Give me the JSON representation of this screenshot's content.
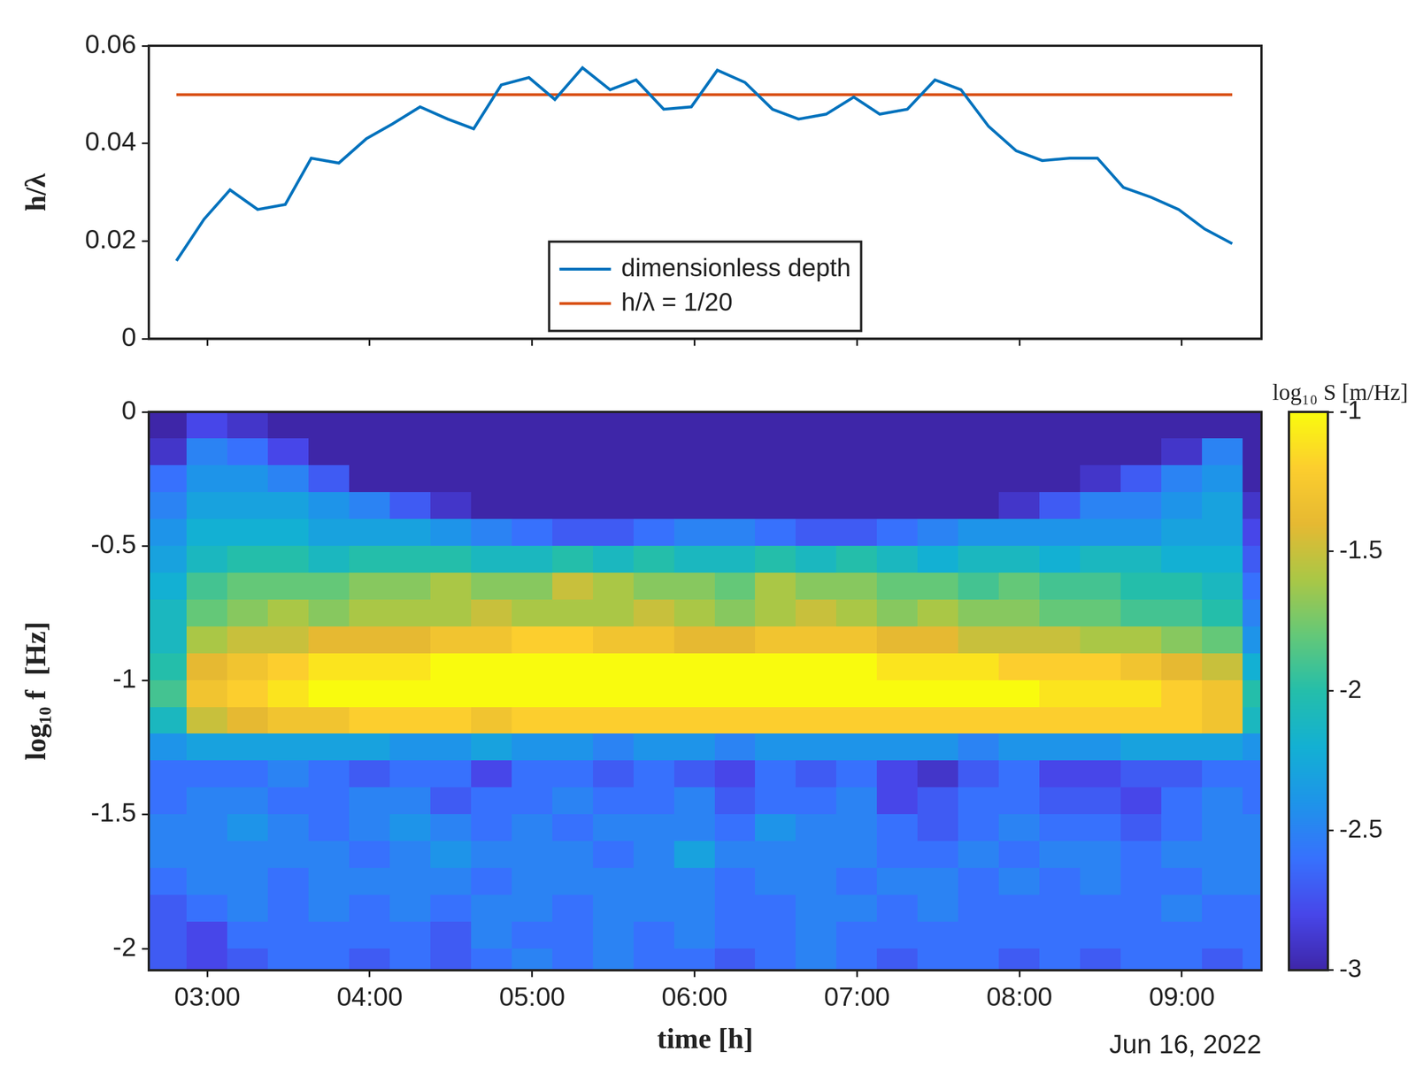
{
  "chart_data": [
    {
      "type": "line",
      "ylabel": "h/λ",
      "xlim": [
        2.64,
        9.49
      ],
      "xticks": [
        {
          "value": 3,
          "label": "03:00"
        },
        {
          "value": 4,
          "label": "04:00"
        },
        {
          "value": 5,
          "label": "05:00"
        },
        {
          "value": 6,
          "label": "06:00"
        },
        {
          "value": 7,
          "label": "07:00"
        },
        {
          "value": 8,
          "label": "08:00"
        },
        {
          "value": 9,
          "label": "09:00"
        }
      ],
      "ylim": [
        0,
        0.06
      ],
      "yticks": [
        0,
        0.02,
        0.04,
        0.06
      ],
      "legend": "bottom",
      "tick_labels": "y",
      "grid": false,
      "series": [
        {
          "name": "dimensionless depth",
          "color": "#0072bd",
          "x": [
            2.81,
            2.98,
            3.14,
            3.31,
            3.48,
            3.64,
            3.81,
            3.98,
            4.14,
            4.31,
            4.48,
            4.64,
            4.81,
            4.98,
            5.14,
            5.31,
            5.48,
            5.64,
            5.81,
            5.98,
            6.14,
            6.31,
            6.48,
            6.64,
            6.81,
            6.98,
            7.14,
            7.31,
            7.48,
            7.64,
            7.81,
            7.98,
            8.14,
            8.31,
            8.48,
            8.64,
            8.81,
            8.98,
            9.14,
            9.31
          ],
          "values": [
            0.016,
            0.0245,
            0.0305,
            0.0265,
            0.0275,
            0.037,
            0.036,
            0.041,
            0.044,
            0.0475,
            0.045,
            0.043,
            0.052,
            0.0535,
            0.049,
            0.0555,
            0.051,
            0.053,
            0.047,
            0.0475,
            0.055,
            0.0525,
            0.047,
            0.045,
            0.046,
            0.0495,
            0.046,
            0.047,
            0.053,
            0.051,
            0.0435,
            0.0385,
            0.0365,
            0.037,
            0.037,
            0.031,
            0.029,
            0.0265,
            0.0225,
            0.0195
          ]
        },
        {
          "name": "h/λ = 1/20",
          "color": "#d95319",
          "x": [
            2.81,
            9.31
          ],
          "values": [
            0.05,
            0.05
          ]
        }
      ]
    },
    {
      "type": "heatmap",
      "xlabel": "time [h]",
      "ylabel": "log₁₀ f  [Hz]",
      "annotation": "Jun 16, 2022",
      "xlim": [
        2.64,
        9.49
      ],
      "xticks": [
        {
          "value": 3,
          "label": "03:00"
        },
        {
          "value": 4,
          "label": "04:00"
        },
        {
          "value": 5,
          "label": "05:00"
        },
        {
          "value": 6,
          "label": "06:00"
        },
        {
          "value": 7,
          "label": "07:00"
        },
        {
          "value": 8,
          "label": "08:00"
        },
        {
          "value": 9,
          "label": "09:00"
        }
      ],
      "ylim": [
        -2.08,
        0
      ],
      "yticks": [
        0,
        -0.5,
        -1,
        -1.5,
        -2
      ],
      "grid": false,
      "colorbar": {
        "title": "log₁₀ S [m/Hz]",
        "lim": [
          -3,
          -1
        ],
        "ticks": [
          -3,
          -2.5,
          -2,
          -1.5,
          -1
        ]
      },
      "x": [
        2.75,
        3,
        3.25,
        3.5,
        3.75,
        4,
        4.25,
        4.5,
        4.75,
        5,
        5.25,
        5.5,
        5.75,
        6,
        6.25,
        6.5,
        6.75,
        7,
        7.25,
        7.5,
        7.75,
        8,
        8.25,
        8.5,
        8.75,
        9,
        9.25,
        9.5
      ],
      "y": [
        -0.05,
        -0.15,
        -0.25,
        -0.35,
        -0.45,
        -0.55,
        -0.65,
        -0.75,
        -0.85,
        -0.95,
        -1.05,
        -1.15,
        -1.25,
        -1.35,
        -1.45,
        -1.55,
        -1.65,
        -1.75,
        -1.85,
        -1.95,
        -2.05
      ],
      "values": [
        [
          -3,
          -2.8,
          -2.9,
          -3,
          -3,
          -3,
          -3,
          -3,
          -3,
          -3,
          -3,
          -3,
          -3,
          -3,
          -3,
          -3,
          -3,
          -3,
          -3,
          -3,
          -3,
          -3,
          -3,
          -3,
          -3,
          -3,
          -3,
          -3
        ],
        [
          -2.9,
          -2.5,
          -2.6,
          -2.8,
          -3,
          -3,
          -3,
          -3,
          -3,
          -3,
          -3,
          -3,
          -3,
          -3,
          -3,
          -3,
          -3,
          -3,
          -3,
          -3,
          -3,
          -3,
          -3,
          -3,
          -3,
          -2.9,
          -2.5,
          -3
        ],
        [
          -2.6,
          -2.4,
          -2.4,
          -2.5,
          -2.7,
          -3,
          -3,
          -3,
          -3,
          -3,
          -3,
          -3,
          -3,
          -3,
          -3,
          -3,
          -3,
          -3,
          -3,
          -3,
          -3,
          -3,
          -3,
          -2.9,
          -2.7,
          -2.5,
          -2.4,
          -3
        ],
        [
          -2.5,
          -2.3,
          -2.3,
          -2.3,
          -2.4,
          -2.5,
          -2.7,
          -2.9,
          -3,
          -3,
          -3,
          -3,
          -3,
          -3,
          -3,
          -3,
          -3,
          -3,
          -3,
          -3,
          -3,
          -2.9,
          -2.7,
          -2.5,
          -2.5,
          -2.4,
          -2.3,
          -2.9
        ],
        [
          -2.4,
          -2.2,
          -2.2,
          -2.2,
          -2.3,
          -2.3,
          -2.3,
          -2.4,
          -2.5,
          -2.6,
          -2.7,
          -2.7,
          -2.6,
          -2.5,
          -2.5,
          -2.6,
          -2.7,
          -2.7,
          -2.6,
          -2.5,
          -2.4,
          -2.4,
          -2.4,
          -2.4,
          -2.4,
          -2.3,
          -2.3,
          -2.8
        ],
        [
          -2.3,
          -2.1,
          -2,
          -2,
          -2.1,
          -2,
          -2,
          -2,
          -2.1,
          -2.1,
          -2,
          -2.1,
          -2,
          -2.1,
          -2.1,
          -2,
          -2.1,
          -2,
          -2.1,
          -2.2,
          -2.1,
          -2.1,
          -2.2,
          -2.1,
          -2.1,
          -2.2,
          -2.2,
          -2.7
        ],
        [
          -2.2,
          -1.9,
          -1.8,
          -1.8,
          -1.8,
          -1.7,
          -1.7,
          -1.6,
          -1.7,
          -1.7,
          -1.5,
          -1.6,
          -1.7,
          -1.7,
          -1.8,
          -1.6,
          -1.7,
          -1.7,
          -1.8,
          -1.8,
          -1.9,
          -1.8,
          -1.9,
          -1.9,
          -2,
          -2,
          -2.1,
          -2.6
        ],
        [
          -2.1,
          -1.8,
          -1.7,
          -1.6,
          -1.7,
          -1.6,
          -1.6,
          -1.6,
          -1.5,
          -1.6,
          -1.6,
          -1.6,
          -1.5,
          -1.6,
          -1.7,
          -1.6,
          -1.5,
          -1.6,
          -1.7,
          -1.6,
          -1.7,
          -1.7,
          -1.8,
          -1.8,
          -1.9,
          -1.9,
          -2,
          -2.5
        ],
        [
          -2.1,
          -1.6,
          -1.5,
          -1.5,
          -1.4,
          -1.4,
          -1.4,
          -1.3,
          -1.3,
          -1.2,
          -1.2,
          -1.3,
          -1.3,
          -1.4,
          -1.4,
          -1.3,
          -1.3,
          -1.3,
          -1.4,
          -1.4,
          -1.5,
          -1.5,
          -1.5,
          -1.6,
          -1.6,
          -1.7,
          -1.8,
          -2.4
        ],
        [
          -2,
          -1.4,
          -1.3,
          -1.2,
          -1.1,
          -1.1,
          -1.1,
          -1,
          -1,
          -1,
          -1,
          -1,
          -1,
          -1,
          -1,
          -1,
          -1,
          -1,
          -1.1,
          -1.1,
          -1.1,
          -1.2,
          -1.2,
          -1.2,
          -1.3,
          -1.4,
          -1.5,
          -2.2
        ],
        [
          -1.9,
          -1.3,
          -1.2,
          -1.1,
          -1,
          -1,
          -1,
          -1,
          -1,
          -1,
          -1,
          -1,
          -1,
          -1,
          -1,
          -1,
          -1,
          -1,
          -1,
          -1,
          -1,
          -1,
          -1.1,
          -1.1,
          -1.1,
          -1.2,
          -1.3,
          -2
        ],
        [
          -2.1,
          -1.5,
          -1.4,
          -1.3,
          -1.3,
          -1.2,
          -1.2,
          -1.2,
          -1.3,
          -1.2,
          -1.2,
          -1.2,
          -1.2,
          -1.2,
          -1.2,
          -1.2,
          -1.2,
          -1.2,
          -1.2,
          -1.2,
          -1.2,
          -1.2,
          -1.2,
          -1.2,
          -1.2,
          -1.2,
          -1.3,
          -2.1
        ],
        [
          -2.4,
          -2.3,
          -2.3,
          -2.3,
          -2.3,
          -2.3,
          -2.4,
          -2.4,
          -2.3,
          -2.4,
          -2.4,
          -2.5,
          -2.4,
          -2.4,
          -2.5,
          -2.4,
          -2.4,
          -2.4,
          -2.4,
          -2.4,
          -2.5,
          -2.4,
          -2.4,
          -2.4,
          -2.3,
          -2.3,
          -2.3,
          -2.4
        ],
        [
          -2.6,
          -2.6,
          -2.6,
          -2.5,
          -2.6,
          -2.7,
          -2.6,
          -2.6,
          -2.8,
          -2.6,
          -2.6,
          -2.7,
          -2.6,
          -2.7,
          -2.8,
          -2.6,
          -2.7,
          -2.6,
          -2.8,
          -2.9,
          -2.7,
          -2.6,
          -2.8,
          -2.8,
          -2.7,
          -2.7,
          -2.6,
          -2.6
        ],
        [
          -2.6,
          -2.5,
          -2.5,
          -2.6,
          -2.6,
          -2.5,
          -2.5,
          -2.7,
          -2.6,
          -2.6,
          -2.5,
          -2.6,
          -2.6,
          -2.5,
          -2.7,
          -2.6,
          -2.6,
          -2.5,
          -2.8,
          -2.7,
          -2.6,
          -2.6,
          -2.7,
          -2.7,
          -2.8,
          -2.6,
          -2.5,
          -2.6
        ],
        [
          -2.5,
          -2.5,
          -2.4,
          -2.5,
          -2.6,
          -2.5,
          -2.4,
          -2.5,
          -2.6,
          -2.5,
          -2.6,
          -2.5,
          -2.5,
          -2.5,
          -2.6,
          -2.4,
          -2.5,
          -2.5,
          -2.6,
          -2.7,
          -2.6,
          -2.5,
          -2.6,
          -2.6,
          -2.7,
          -2.6,
          -2.5,
          -2.5
        ],
        [
          -2.5,
          -2.5,
          -2.5,
          -2.5,
          -2.5,
          -2.6,
          -2.5,
          -2.4,
          -2.5,
          -2.5,
          -2.5,
          -2.6,
          -2.5,
          -2.3,
          -2.5,
          -2.5,
          -2.5,
          -2.5,
          -2.6,
          -2.6,
          -2.5,
          -2.6,
          -2.5,
          -2.5,
          -2.6,
          -2.5,
          -2.5,
          -2.5
        ],
        [
          -2.6,
          -2.5,
          -2.5,
          -2.6,
          -2.5,
          -2.5,
          -2.5,
          -2.5,
          -2.6,
          -2.5,
          -2.5,
          -2.5,
          -2.5,
          -2.5,
          -2.6,
          -2.5,
          -2.5,
          -2.6,
          -2.5,
          -2.5,
          -2.6,
          -2.5,
          -2.6,
          -2.5,
          -2.6,
          -2.6,
          -2.5,
          -2.5
        ],
        [
          -2.7,
          -2.6,
          -2.5,
          -2.6,
          -2.5,
          -2.6,
          -2.5,
          -2.6,
          -2.5,
          -2.5,
          -2.6,
          -2.5,
          -2.5,
          -2.5,
          -2.6,
          -2.6,
          -2.5,
          -2.5,
          -2.6,
          -2.5,
          -2.6,
          -2.6,
          -2.6,
          -2.6,
          -2.6,
          -2.5,
          -2.6,
          -2.6
        ],
        [
          -2.7,
          -2.8,
          -2.6,
          -2.6,
          -2.6,
          -2.6,
          -2.6,
          -2.7,
          -2.5,
          -2.6,
          -2.6,
          -2.5,
          -2.6,
          -2.5,
          -2.6,
          -2.6,
          -2.5,
          -2.6,
          -2.6,
          -2.6,
          -2.6,
          -2.6,
          -2.6,
          -2.6,
          -2.6,
          -2.6,
          -2.6,
          -2.6
        ],
        [
          -2.7,
          -2.8,
          -2.7,
          -2.6,
          -2.6,
          -2.7,
          -2.6,
          -2.7,
          -2.6,
          -2.5,
          -2.6,
          -2.5,
          -2.6,
          -2.6,
          -2.7,
          -2.6,
          -2.5,
          -2.6,
          -2.7,
          -2.6,
          -2.6,
          -2.7,
          -2.6,
          -2.7,
          -2.6,
          -2.6,
          -2.7,
          -2.6
        ]
      ]
    }
  ]
}
